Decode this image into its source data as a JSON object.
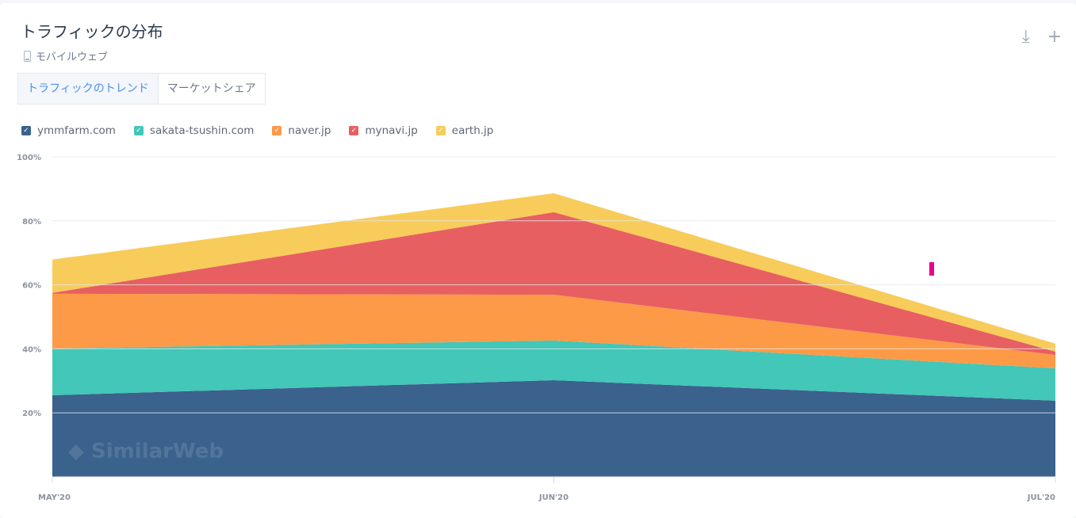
{
  "header": {
    "title": "トラフィックの分布",
    "subtitle": "モバイルウェブ",
    "subtitle_icon": "mobile-phone-icon"
  },
  "toolbar": {
    "download_icon": "download-icon",
    "add_icon": "plus-icon"
  },
  "tabs": [
    {
      "label": "トラフィックのトレンド",
      "active": true
    },
    {
      "label": "マーケットシェア",
      "active": false
    }
  ],
  "watermark": "SimilarWeb",
  "chart_data": {
    "type": "area",
    "stacked": true,
    "title": "トラフィックの分布",
    "categories": [
      "MAY'20",
      "JUN'20",
      "JUL'20"
    ],
    "ylim": [
      0,
      100
    ],
    "yticks": [
      20,
      40,
      60,
      80,
      100
    ],
    "ytick_labels": [
      "20%",
      "40%",
      "60%",
      "80%",
      "100%"
    ],
    "grid": true,
    "legend_position": "top-left",
    "series": [
      {
        "name": "ymmfarm.com",
        "color": "#3a628c",
        "values": [
          25.5,
          30.2,
          23.8
        ]
      },
      {
        "name": "sakata-tsushin.com",
        "color": "#42c7b8",
        "values": [
          14.6,
          12.4,
          10.1
        ]
      },
      {
        "name": "naver.jp",
        "color": "#fd9a47",
        "values": [
          17.1,
          14.3,
          4.2
        ]
      },
      {
        "name": "mynavi.jp",
        "color": "#e85f61",
        "values": [
          0.3,
          25.8,
          1.0
        ]
      },
      {
        "name": "earth.jp",
        "color": "#f8cc5a",
        "values": [
          10.4,
          5.9,
          2.5
        ]
      }
    ]
  }
}
